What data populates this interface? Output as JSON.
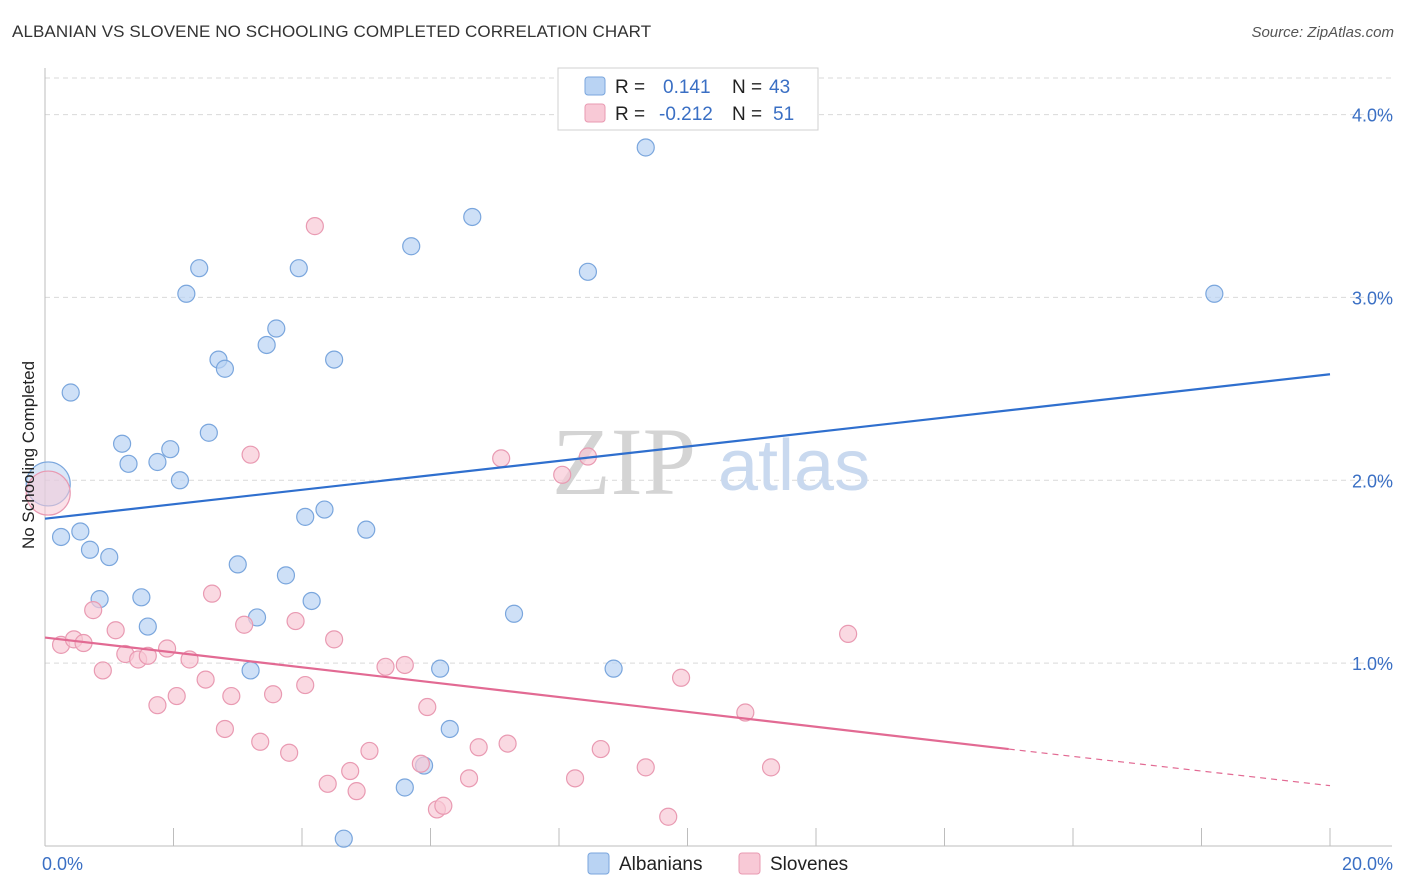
{
  "header": {
    "title": "ALBANIAN VS SLOVENE NO SCHOOLING COMPLETED CORRELATION CHART",
    "source": "Source: ZipAtlas.com"
  },
  "watermark": {
    "zip": "ZIP",
    "atlas": "atlas"
  },
  "colors": {
    "albanian_fill": "#b9d3f3",
    "albanian_stroke": "#7aa6dd",
    "albanian_line": "#2f6fce",
    "slovene_fill": "#f8c9d6",
    "slovene_stroke": "#e99ab2",
    "slovene_line": "#e26a93",
    "tick_text": "#3a6fc4",
    "grid": "#d9d9d9"
  },
  "legend": {
    "rows": [
      {
        "r_label": "R = ",
        "r_value": "0.141",
        "n_label": "N = ",
        "n_value": "43"
      },
      {
        "r_label": "R = ",
        "r_value": "-0.212",
        "n_label": "N = ",
        "n_value": "51"
      }
    ]
  },
  "chart_data": {
    "type": "scatter",
    "title": "ALBANIAN VS SLOVENE NO SCHOOLING COMPLETED CORRELATION CHART",
    "xlabel": "",
    "ylabel": "No Schooling Completed",
    "xlim": [
      0,
      20
    ],
    "ylim": [
      0,
      4.2
    ],
    "x_unit": "%",
    "y_unit": "%",
    "x_tick_labels": [
      "0.0%",
      "20.0%"
    ],
    "y_ticks": [
      1.0,
      2.0,
      3.0,
      4.0
    ],
    "y_tick_labels": [
      "1.0%",
      "2.0%",
      "3.0%",
      "4.0%"
    ],
    "grid": "horizontal dashed",
    "legend_position": "bottom-center",
    "series": [
      {
        "name": "Albanians",
        "r": 0.141,
        "n": 43,
        "trend": {
          "x": [
            0,
            20
          ],
          "y": [
            1.79,
            2.58
          ]
        },
        "points": [
          {
            "x": 0.05,
            "y": 1.98,
            "big": true
          },
          {
            "x": 0.25,
            "y": 1.69
          },
          {
            "x": 0.4,
            "y": 2.48
          },
          {
            "x": 0.55,
            "y": 1.72
          },
          {
            "x": 0.7,
            "y": 1.62
          },
          {
            "x": 1.0,
            "y": 1.58
          },
          {
            "x": 1.2,
            "y": 2.2
          },
          {
            "x": 1.3,
            "y": 2.09
          },
          {
            "x": 0.85,
            "y": 1.35
          },
          {
            "x": 1.5,
            "y": 1.36
          },
          {
            "x": 1.6,
            "y": 1.2
          },
          {
            "x": 1.75,
            "y": 2.1
          },
          {
            "x": 1.95,
            "y": 2.17
          },
          {
            "x": 2.1,
            "y": 2.0
          },
          {
            "x": 2.2,
            "y": 3.02
          },
          {
            "x": 2.4,
            "y": 3.16
          },
          {
            "x": 2.55,
            "y": 2.26
          },
          {
            "x": 2.7,
            "y": 2.66
          },
          {
            "x": 2.8,
            "y": 2.61
          },
          {
            "x": 3.0,
            "y": 1.54
          },
          {
            "x": 3.2,
            "y": 0.96
          },
          {
            "x": 3.3,
            "y": 1.25
          },
          {
            "x": 3.45,
            "y": 2.74
          },
          {
            "x": 3.6,
            "y": 2.83
          },
          {
            "x": 3.75,
            "y": 1.48
          },
          {
            "x": 3.95,
            "y": 3.16
          },
          {
            "x": 4.05,
            "y": 1.8
          },
          {
            "x": 4.15,
            "y": 1.34
          },
          {
            "x": 4.35,
            "y": 1.84
          },
          {
            "x": 4.5,
            "y": 2.66
          },
          {
            "x": 4.65,
            "y": 0.04
          },
          {
            "x": 5.0,
            "y": 1.73
          },
          {
            "x": 5.6,
            "y": 0.32
          },
          {
            "x": 5.7,
            "y": 3.28
          },
          {
            "x": 5.9,
            "y": 0.44
          },
          {
            "x": 6.15,
            "y": 0.97
          },
          {
            "x": 6.3,
            "y": 0.64
          },
          {
            "x": 6.65,
            "y": 3.44
          },
          {
            "x": 7.3,
            "y": 1.27
          },
          {
            "x": 8.45,
            "y": 3.14
          },
          {
            "x": 8.85,
            "y": 0.97
          },
          {
            "x": 9.35,
            "y": 3.82
          },
          {
            "x": 18.2,
            "y": 3.02
          }
        ]
      },
      {
        "name": "Slovenes",
        "r": -0.212,
        "n": 51,
        "trend": {
          "x": [
            0,
            15
          ],
          "y": [
            1.14,
            0.53
          ]
        },
        "trend_dashed": {
          "x": [
            15,
            20
          ],
          "y": [
            0.53,
            0.33
          ]
        },
        "points": [
          {
            "x": 0.05,
            "y": 1.93,
            "big": true
          },
          {
            "x": 0.25,
            "y": 1.1
          },
          {
            "x": 0.45,
            "y": 1.13
          },
          {
            "x": 0.6,
            "y": 1.11
          },
          {
            "x": 0.75,
            "y": 1.29
          },
          {
            "x": 0.9,
            "y": 0.96
          },
          {
            "x": 1.1,
            "y": 1.18
          },
          {
            "x": 1.25,
            "y": 1.05
          },
          {
            "x": 1.45,
            "y": 1.02
          },
          {
            "x": 1.6,
            "y": 1.04
          },
          {
            "x": 1.75,
            "y": 0.77
          },
          {
            "x": 1.9,
            "y": 1.08
          },
          {
            "x": 2.05,
            "y": 0.82
          },
          {
            "x": 2.25,
            "y": 1.02
          },
          {
            "x": 2.5,
            "y": 0.91
          },
          {
            "x": 2.6,
            "y": 1.38
          },
          {
            "x": 2.8,
            "y": 0.64
          },
          {
            "x": 2.9,
            "y": 0.82
          },
          {
            "x": 3.1,
            "y": 1.21
          },
          {
            "x": 3.2,
            "y": 2.14
          },
          {
            "x": 3.35,
            "y": 0.57
          },
          {
            "x": 3.55,
            "y": 0.83
          },
          {
            "x": 3.8,
            "y": 0.51
          },
          {
            "x": 3.9,
            "y": 1.23
          },
          {
            "x": 4.05,
            "y": 0.88
          },
          {
            "x": 4.2,
            "y": 3.39
          },
          {
            "x": 4.4,
            "y": 0.34
          },
          {
            "x": 4.5,
            "y": 1.13
          },
          {
            "x": 4.75,
            "y": 0.41
          },
          {
            "x": 4.85,
            "y": 0.3
          },
          {
            "x": 5.05,
            "y": 0.52
          },
          {
            "x": 5.3,
            "y": 0.98
          },
          {
            "x": 5.6,
            "y": 0.99
          },
          {
            "x": 5.85,
            "y": 0.45
          },
          {
            "x": 5.95,
            "y": 0.76
          },
          {
            "x": 6.1,
            "y": 0.2
          },
          {
            "x": 6.2,
            "y": 0.22
          },
          {
            "x": 6.6,
            "y": 0.37
          },
          {
            "x": 6.75,
            "y": 0.54
          },
          {
            "x": 7.1,
            "y": 2.12
          },
          {
            "x": 7.2,
            "y": 0.56
          },
          {
            "x": 8.05,
            "y": 2.03
          },
          {
            "x": 8.25,
            "y": 0.37
          },
          {
            "x": 8.45,
            "y": 2.13
          },
          {
            "x": 8.65,
            "y": 0.53
          },
          {
            "x": 9.35,
            "y": 0.43
          },
          {
            "x": 9.7,
            "y": 0.16
          },
          {
            "x": 9.9,
            "y": 0.92
          },
          {
            "x": 10.9,
            "y": 0.73
          },
          {
            "x": 11.3,
            "y": 0.43
          },
          {
            "x": 12.5,
            "y": 1.16
          }
        ]
      }
    ]
  }
}
